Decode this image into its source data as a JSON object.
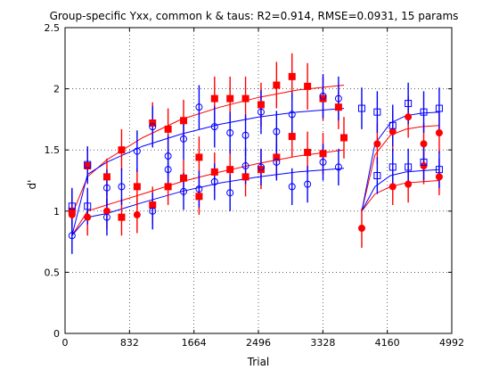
{
  "chart_data": {
    "type": "scatter",
    "title": "Group-specific Yxx, common k & taus: R2=0.914, RMSE=0.0931, 15 params",
    "xlabel": "Trial",
    "ylabel": "d'",
    "xlim": [
      0,
      4992
    ],
    "ylim": [
      0,
      2.5
    ],
    "xticks": [
      "0",
      "832",
      "1664",
      "2496",
      "3328",
      "4160",
      "4992"
    ],
    "yticks": [
      "0",
      "0.5",
      "1",
      "1.5",
      "2",
      "2.5"
    ],
    "grid": true,
    "colors": {
      "red": "#ff0000",
      "blue": "#0000ff",
      "red_line": "#ff0000",
      "blue_line": "#0000ff",
      "red_err": "#ff0000",
      "blue_err": "#0000ff"
    },
    "series": [
      {
        "marker": "square-filled",
        "color": "red",
        "points": [
          {
            "x": 90,
            "y": 1.0,
            "lo": 0.85,
            "hi": 1.17
          },
          {
            "x": 290,
            "y": 1.37,
            "lo": 1.22,
            "hi": 1.52
          },
          {
            "x": 540,
            "y": 1.28,
            "lo": 1.13,
            "hi": 1.43
          },
          {
            "x": 730,
            "y": 1.5,
            "lo": 1.33,
            "hi": 1.67
          },
          {
            "x": 930,
            "y": 1.2,
            "lo": 1.05,
            "hi": 1.35
          },
          {
            "x": 1130,
            "y": 1.72,
            "lo": 1.55,
            "hi": 1.89
          },
          {
            "x": 1330,
            "y": 1.67,
            "lo": 1.5,
            "hi": 1.84
          },
          {
            "x": 1530,
            "y": 1.74,
            "lo": 1.57,
            "hi": 1.91
          },
          {
            "x": 1730,
            "y": 1.44,
            "lo": 1.27,
            "hi": 1.61
          },
          {
            "x": 1930,
            "y": 1.92,
            "lo": 1.74,
            "hi": 2.1
          },
          {
            "x": 2130,
            "y": 1.92,
            "lo": 1.74,
            "hi": 2.1
          },
          {
            "x": 2330,
            "y": 1.92,
            "lo": 1.74,
            "hi": 2.1
          },
          {
            "x": 2530,
            "y": 1.87,
            "lo": 1.69,
            "hi": 2.05
          },
          {
            "x": 2730,
            "y": 2.03,
            "lo": 1.84,
            "hi": 2.22
          },
          {
            "x": 2930,
            "y": 2.1,
            "lo": 1.91,
            "hi": 2.29
          },
          {
            "x": 3130,
            "y": 2.02,
            "lo": 1.83,
            "hi": 2.21
          },
          {
            "x": 3330,
            "y": 1.92,
            "lo": 1.74,
            "hi": 2.1
          },
          {
            "x": 3530,
            "y": 1.85,
            "lo": 1.67,
            "hi": 2.03
          },
          {
            "x": 3600,
            "y": 1.6,
            "lo": 1.43,
            "hi": 1.77
          }
        ]
      },
      {
        "marker": "square-filled",
        "color": "red",
        "points": [
          {
            "x": 730,
            "y": 0.95,
            "lo": 0.8,
            "hi": 1.1
          },
          {
            "x": 1130,
            "y": 1.05,
            "lo": 0.9,
            "hi": 1.2
          },
          {
            "x": 1330,
            "y": 1.2,
            "lo": 1.05,
            "hi": 1.35
          },
          {
            "x": 1530,
            "y": 1.27,
            "lo": 1.12,
            "hi": 1.42
          },
          {
            "x": 1730,
            "y": 1.12,
            "lo": 0.97,
            "hi": 1.27
          },
          {
            "x": 1930,
            "y": 1.32,
            "lo": 1.16,
            "hi": 1.48
          },
          {
            "x": 2130,
            "y": 1.34,
            "lo": 1.18,
            "hi": 1.5
          },
          {
            "x": 2330,
            "y": 1.28,
            "lo": 1.12,
            "hi": 1.44
          },
          {
            "x": 2530,
            "y": 1.34,
            "lo": 1.18,
            "hi": 1.5
          },
          {
            "x": 2730,
            "y": 1.44,
            "lo": 1.27,
            "hi": 1.61
          },
          {
            "x": 2930,
            "y": 1.61,
            "lo": 1.44,
            "hi": 1.78
          },
          {
            "x": 3130,
            "y": 1.48,
            "lo": 1.31,
            "hi": 1.65
          },
          {
            "x": 3330,
            "y": 1.47,
            "lo": 1.3,
            "hi": 1.64
          }
        ]
      },
      {
        "marker": "circle-filled",
        "color": "red",
        "points": [
          {
            "x": 90,
            "y": 0.97,
            "lo": 0.82,
            "hi": 1.12
          },
          {
            "x": 290,
            "y": 0.95,
            "lo": 0.8,
            "hi": 1.1
          },
          {
            "x": 540,
            "y": 1.0,
            "lo": 0.85,
            "hi": 1.15
          },
          {
            "x": 930,
            "y": 0.97,
            "lo": 0.82,
            "hi": 1.12
          },
          {
            "x": 3830,
            "y": 0.86,
            "lo": 0.7,
            "hi": 1.02
          },
          {
            "x": 4030,
            "y": 1.55,
            "lo": 1.38,
            "hi": 1.72
          },
          {
            "x": 4230,
            "y": 1.65,
            "lo": 1.48,
            "hi": 1.82
          },
          {
            "x": 4230,
            "y": 1.2,
            "lo": 1.05,
            "hi": 1.35
          },
          {
            "x": 4430,
            "y": 1.77,
            "lo": 1.6,
            "hi": 1.94
          },
          {
            "x": 4430,
            "y": 1.22,
            "lo": 1.07,
            "hi": 1.37
          },
          {
            "x": 4630,
            "y": 1.55,
            "lo": 1.38,
            "hi": 1.72
          },
          {
            "x": 4630,
            "y": 1.37,
            "lo": 1.22,
            "hi": 1.52
          },
          {
            "x": 4830,
            "y": 1.64,
            "lo": 1.47,
            "hi": 1.81
          },
          {
            "x": 4830,
            "y": 1.28,
            "lo": 1.13,
            "hi": 1.43
          }
        ]
      },
      {
        "marker": "square-open",
        "color": "blue",
        "points": [
          {
            "x": 90,
            "y": 1.04,
            "lo": 0.89,
            "hi": 1.19
          },
          {
            "x": 290,
            "y": 1.38,
            "lo": 1.23,
            "hi": 1.53
          },
          {
            "x": 290,
            "y": 1.04,
            "lo": 0.89,
            "hi": 1.19
          },
          {
            "x": 3830,
            "y": 1.84,
            "lo": 1.67,
            "hi": 2.01
          },
          {
            "x": 4030,
            "y": 1.81,
            "lo": 1.64,
            "hi": 1.98
          },
          {
            "x": 4030,
            "y": 1.29,
            "lo": 1.14,
            "hi": 1.44
          },
          {
            "x": 4230,
            "y": 1.7,
            "lo": 1.53,
            "hi": 1.87
          },
          {
            "x": 4230,
            "y": 1.36,
            "lo": 1.21,
            "hi": 1.51
          },
          {
            "x": 4430,
            "y": 1.88,
            "lo": 1.71,
            "hi": 2.05
          },
          {
            "x": 4430,
            "y": 1.36,
            "lo": 1.21,
            "hi": 1.51
          },
          {
            "x": 4630,
            "y": 1.81,
            "lo": 1.64,
            "hi": 1.98
          },
          {
            "x": 4630,
            "y": 1.4,
            "lo": 1.25,
            "hi": 1.55
          },
          {
            "x": 4830,
            "y": 1.84,
            "lo": 1.67,
            "hi": 2.01
          },
          {
            "x": 4830,
            "y": 1.34,
            "lo": 1.19,
            "hi": 1.49
          }
        ]
      },
      {
        "marker": "circle-open",
        "color": "blue",
        "points": [
          {
            "x": 90,
            "y": 0.8,
            "lo": 0.65,
            "hi": 0.95
          },
          {
            "x": 540,
            "y": 0.95,
            "lo": 0.8,
            "hi": 1.1
          },
          {
            "x": 540,
            "y": 1.19,
            "lo": 1.04,
            "hi": 1.34
          },
          {
            "x": 730,
            "y": 1.2,
            "lo": 1.05,
            "hi": 1.35
          },
          {
            "x": 930,
            "y": 1.49,
            "lo": 1.32,
            "hi": 1.66
          },
          {
            "x": 1130,
            "y": 1.69,
            "lo": 1.52,
            "hi": 1.86
          },
          {
            "x": 1130,
            "y": 1.0,
            "lo": 0.85,
            "hi": 1.15
          },
          {
            "x": 1330,
            "y": 1.45,
            "lo": 1.28,
            "hi": 1.62
          },
          {
            "x": 1330,
            "y": 1.34,
            "lo": 1.18,
            "hi": 1.5
          },
          {
            "x": 1530,
            "y": 1.59,
            "lo": 1.42,
            "hi": 1.76
          },
          {
            "x": 1530,
            "y": 1.16,
            "lo": 1.01,
            "hi": 1.31
          },
          {
            "x": 1730,
            "y": 1.85,
            "lo": 1.67,
            "hi": 2.03
          },
          {
            "x": 1730,
            "y": 1.18,
            "lo": 1.03,
            "hi": 1.33
          },
          {
            "x": 1930,
            "y": 1.69,
            "lo": 1.52,
            "hi": 1.86
          },
          {
            "x": 1930,
            "y": 1.24,
            "lo": 1.09,
            "hi": 1.39
          },
          {
            "x": 2130,
            "y": 1.64,
            "lo": 1.47,
            "hi": 1.81
          },
          {
            "x": 2130,
            "y": 1.15,
            "lo": 1.0,
            "hi": 1.3
          },
          {
            "x": 2330,
            "y": 1.62,
            "lo": 1.45,
            "hi": 1.79
          },
          {
            "x": 2330,
            "y": 1.37,
            "lo": 1.22,
            "hi": 1.52
          },
          {
            "x": 2530,
            "y": 1.81,
            "lo": 1.63,
            "hi": 1.99
          },
          {
            "x": 2530,
            "y": 1.36,
            "lo": 1.21,
            "hi": 1.51
          },
          {
            "x": 2730,
            "y": 1.65,
            "lo": 1.48,
            "hi": 1.82
          },
          {
            "x": 2730,
            "y": 1.4,
            "lo": 1.25,
            "hi": 1.55
          },
          {
            "x": 2930,
            "y": 1.79,
            "lo": 1.61,
            "hi": 1.97
          },
          {
            "x": 2930,
            "y": 1.2,
            "lo": 1.05,
            "hi": 1.35
          },
          {
            "x": 3130,
            "y": 1.22,
            "lo": 1.07,
            "hi": 1.37
          },
          {
            "x": 3330,
            "y": 1.94,
            "lo": 1.76,
            "hi": 2.12
          },
          {
            "x": 3330,
            "y": 1.4,
            "lo": 1.25,
            "hi": 1.55
          },
          {
            "x": 3530,
            "y": 1.92,
            "lo": 1.74,
            "hi": 2.1
          },
          {
            "x": 3530,
            "y": 1.36,
            "lo": 1.21,
            "hi": 1.51
          }
        ]
      }
    ],
    "curves": [
      {
        "color": "red",
        "x": [
          90,
          290,
          540,
          1000,
          1500,
          2000,
          2500,
          3000,
          3600
        ],
        "y": [
          0.97,
          1.28,
          1.42,
          1.6,
          1.75,
          1.85,
          1.93,
          1.99,
          2.03
        ]
      },
      {
        "color": "red",
        "x": [
          90,
          290,
          540,
          1000,
          1500,
          2000,
          2500,
          3000,
          3600
        ],
        "y": [
          0.8,
          1.0,
          1.05,
          1.14,
          1.24,
          1.32,
          1.39,
          1.45,
          1.5
        ]
      },
      {
        "color": "blue",
        "x": [
          90,
          290,
          540,
          1000,
          1500,
          2000,
          2500,
          3000,
          3600
        ],
        "y": [
          0.8,
          1.3,
          1.4,
          1.53,
          1.63,
          1.71,
          1.77,
          1.81,
          1.84
        ]
      },
      {
        "color": "blue",
        "x": [
          90,
          290,
          540,
          1000,
          1500,
          2000,
          2500,
          3000,
          3600
        ],
        "y": [
          0.8,
          0.95,
          0.98,
          1.07,
          1.16,
          1.23,
          1.28,
          1.32,
          1.35
        ]
      },
      {
        "color": "red",
        "x": [
          3830,
          4000,
          4200,
          4400,
          4600,
          4830
        ],
        "y": [
          1.0,
          1.46,
          1.62,
          1.67,
          1.69,
          1.7
        ]
      },
      {
        "color": "red",
        "x": [
          3830,
          4000,
          4200,
          4400,
          4600,
          4830
        ],
        "y": [
          1.0,
          1.14,
          1.2,
          1.23,
          1.24,
          1.25
        ]
      },
      {
        "color": "blue",
        "x": [
          3830,
          4000,
          4200,
          4400,
          4600,
          4830
        ],
        "y": [
          1.0,
          1.55,
          1.72,
          1.78,
          1.8,
          1.81
        ]
      },
      {
        "color": "blue",
        "x": [
          3830,
          4000,
          4200,
          4400,
          4600,
          4830
        ],
        "y": [
          1.0,
          1.2,
          1.29,
          1.32,
          1.33,
          1.34
        ]
      }
    ]
  }
}
